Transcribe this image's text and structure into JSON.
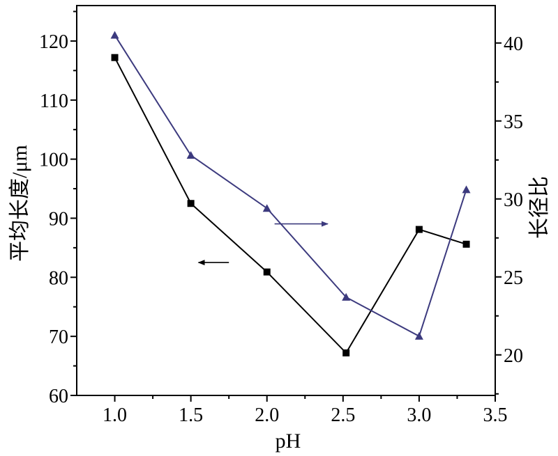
{
  "chart_data": {
    "type": "line",
    "xlabel": "pH",
    "ylabel_left": "平均长度/μm",
    "ylabel_right": "长径比",
    "xlim": [
      0.75,
      3.5
    ],
    "ylim_left": [
      60,
      126
    ],
    "ylim_right": [
      17.4,
      42.4
    ],
    "xticks": [
      1.0,
      1.5,
      2.0,
      2.5,
      3.0,
      3.5
    ],
    "xtick_labels": [
      "1.0",
      "1.5",
      "2.0",
      "2.5",
      "3.0",
      "3.5"
    ],
    "yticks_left": [
      60,
      70,
      80,
      90,
      100,
      110,
      120
    ],
    "ytick_labels_left": [
      "60",
      "70",
      "80",
      "90",
      "100",
      "110",
      "120"
    ],
    "yticks_right": [
      20,
      25,
      30,
      35,
      40
    ],
    "ytick_labels_right": [
      "20",
      "25",
      "30",
      "35",
      "40"
    ],
    "grid": false,
    "legend": "none",
    "series": [
      {
        "axis": "left",
        "marker": "square",
        "color": "#000000",
        "x": [
          1.0,
          1.5,
          2.0,
          2.52,
          3.0,
          3.31
        ],
        "values": [
          117.2,
          92.5,
          80.9,
          67.2,
          88.1,
          85.6
        ]
      },
      {
        "axis": "right",
        "marker": "triangle",
        "color": "#3c3a7e",
        "x": [
          1.0,
          1.5,
          2.0,
          2.52,
          3.0,
          3.31
        ],
        "values": [
          40.5,
          32.8,
          29.4,
          23.7,
          21.2,
          30.6
        ]
      }
    ],
    "annotations": [
      {
        "type": "arrow",
        "direction": "left",
        "points_to_axis": "left",
        "color": "#000000",
        "x_from": 1.75,
        "x_to": 1.55,
        "y_left": 82.5
      },
      {
        "type": "arrow",
        "direction": "right",
        "points_to_axis": "right",
        "color": "#3c3a7e",
        "x_from": 2.05,
        "x_to": 2.4,
        "y_right": 28.4
      }
    ]
  }
}
